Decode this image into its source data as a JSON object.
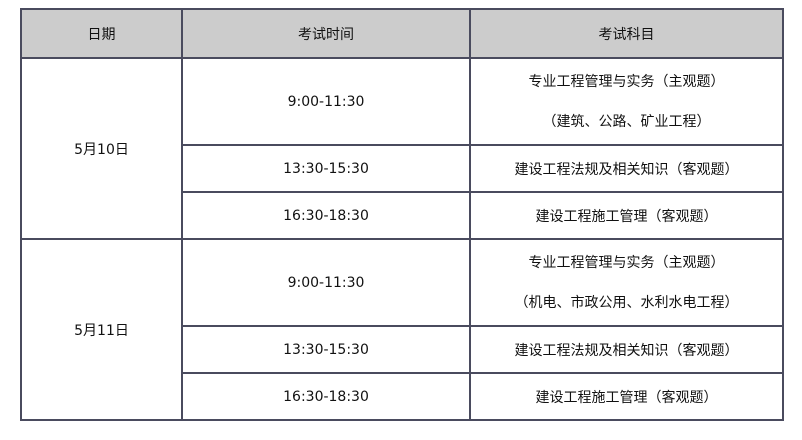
{
  "headers": [
    "日期",
    "考试时间",
    "考试科目"
  ],
  "days": [
    {
      "date": "5月10日",
      "sessions": [
        {
          "time": "9:00-11:30",
          "subject": [
            "专业工程管理与实务（主观题）",
            "（建筑、公路、矿业工程）"
          ]
        },
        {
          "time": "13:30-15:30",
          "subject": [
            "建设工程法规及相关知识（客观题）"
          ]
        },
        {
          "time": "16:30-18:30",
          "subject": [
            "建设工程施工管理（客观题）"
          ]
        }
      ]
    },
    {
      "date": "5月11日",
      "sessions": [
        {
          "time": "9:00-11:30",
          "subject": [
            "专业工程管理与实务（主观题）",
            "（机电、市政公用、水利水电工程）"
          ]
        },
        {
          "time": "13:30-15:30",
          "subject": [
            "建设工程法规及相关知识（客观题）"
          ]
        },
        {
          "time": "16:30-18:30",
          "subject": [
            "建设工程施工管理（客观题）"
          ]
        }
      ]
    }
  ]
}
